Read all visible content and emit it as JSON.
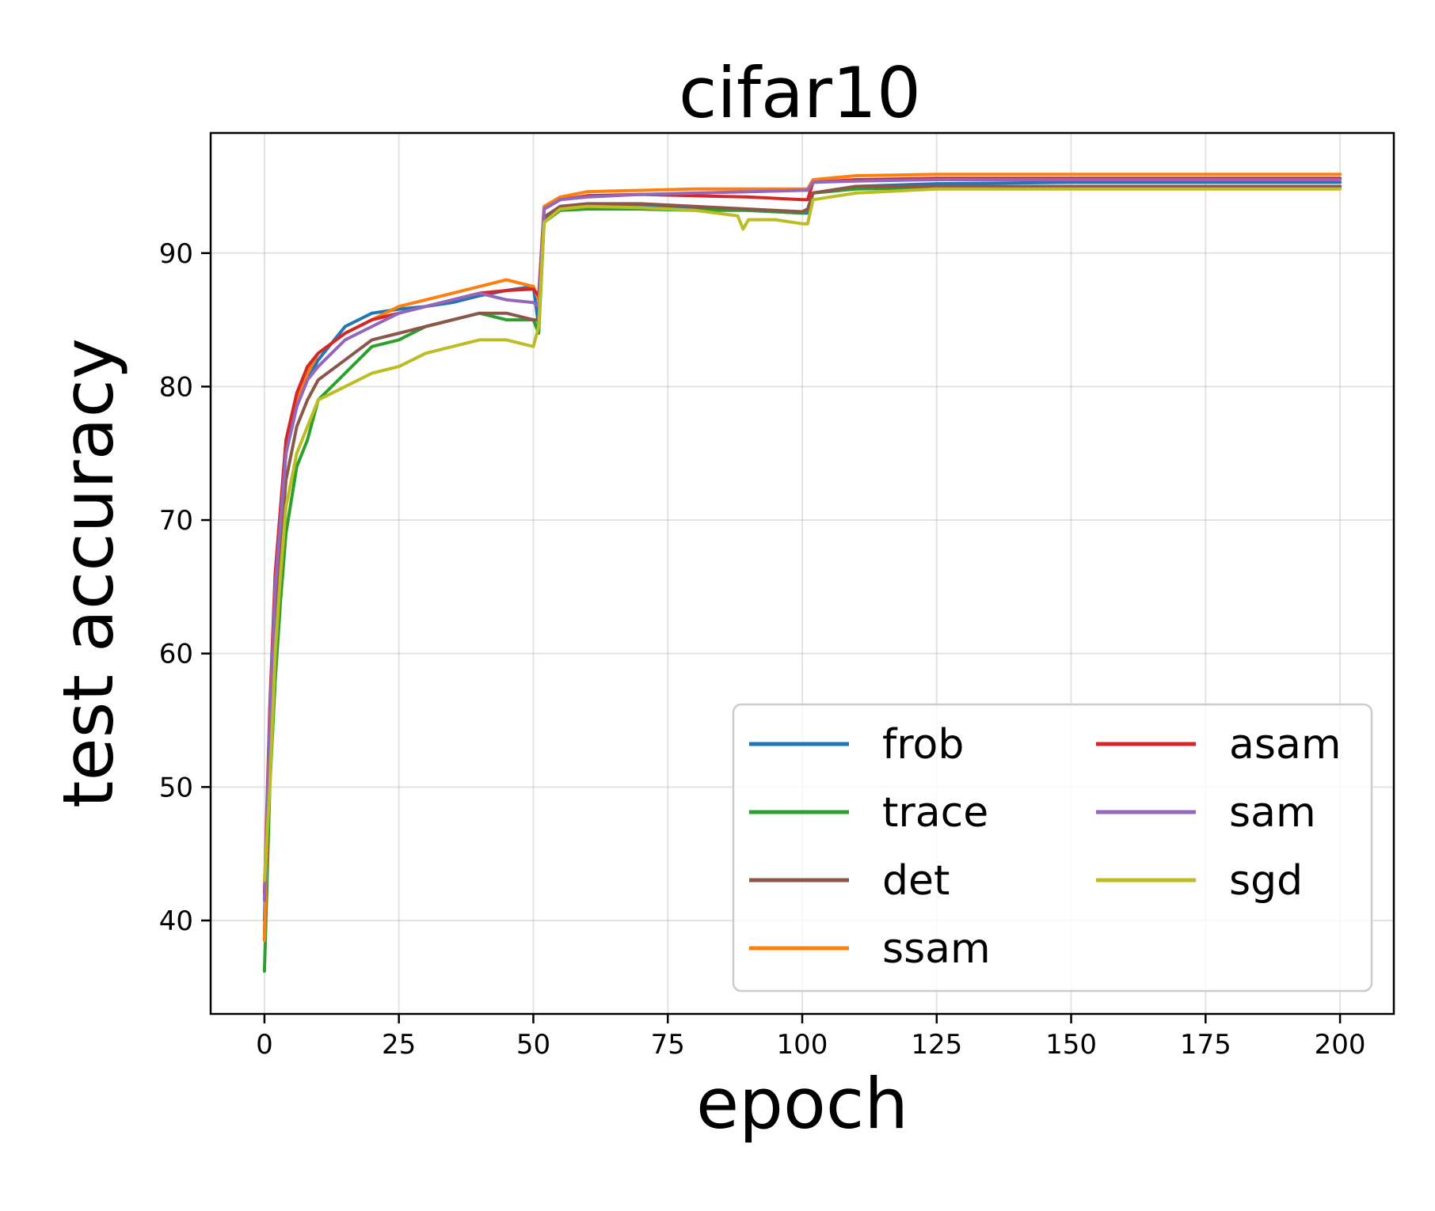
{
  "chart_data": {
    "type": "line",
    "title": "cifar10",
    "xlabel": "epoch",
    "ylabel": "test accuracy",
    "xlim": [
      -10,
      210
    ],
    "ylim": [
      33,
      99
    ],
    "xticks": [
      0,
      25,
      50,
      75,
      100,
      125,
      150,
      175,
      200
    ],
    "yticks": [
      40,
      50,
      60,
      70,
      80,
      90
    ],
    "grid": true,
    "legend": {
      "placement": "bottom-right",
      "columns": 2
    },
    "series": [
      {
        "name": "frob",
        "color": "#1f77b4",
        "x": [
          0,
          1,
          2,
          3,
          4,
          6,
          8,
          10,
          15,
          20,
          25,
          30,
          35,
          40,
          45,
          50,
          51,
          52,
          55,
          60,
          70,
          80,
          90,
          100,
          101,
          102,
          110,
          125,
          150,
          175,
          200
        ],
        "y": [
          40,
          55,
          64,
          70,
          75,
          78.5,
          80.5,
          82,
          84.5,
          85.5,
          85.8,
          86,
          86.3,
          86.8,
          87.2,
          87.5,
          84.5,
          92.5,
          93.5,
          93.6,
          93.6,
          93.4,
          93.2,
          93,
          93,
          94.5,
          95,
          95.2,
          95.3,
          95.3,
          95.3
        ]
      },
      {
        "name": "trace",
        "color": "#2ca02c",
        "x": [
          0,
          1,
          2,
          3,
          4,
          6,
          8,
          10,
          15,
          20,
          25,
          30,
          35,
          40,
          45,
          50,
          51,
          52,
          55,
          60,
          70,
          80,
          90,
          100,
          101,
          102,
          110,
          125,
          150,
          175,
          200
        ],
        "y": [
          36.2,
          50,
          58,
          64,
          69,
          74,
          76,
          79,
          81,
          83,
          83.5,
          84.5,
          85,
          85.5,
          85,
          85,
          84,
          92.3,
          93.2,
          93.3,
          93.3,
          93.2,
          93.2,
          93,
          93.2,
          94.5,
          94.8,
          94.9,
          95,
          95,
          95
        ]
      },
      {
        "name": "det",
        "color": "#8c564b",
        "x": [
          0,
          1,
          2,
          3,
          4,
          6,
          8,
          10,
          15,
          20,
          25,
          30,
          35,
          40,
          45,
          50,
          51,
          52,
          55,
          60,
          70,
          80,
          90,
          100,
          101,
          102,
          110,
          125,
          150,
          175,
          200
        ],
        "y": [
          39,
          53,
          62,
          68,
          73,
          77,
          79,
          80.5,
          82,
          83.5,
          84,
          84.5,
          85,
          85.5,
          85.5,
          85,
          85,
          92.7,
          93.5,
          93.7,
          93.7,
          93.5,
          93.3,
          93.1,
          93.3,
          94.5,
          95,
          95,
          95,
          95,
          95
        ]
      },
      {
        "name": "ssam",
        "color": "#ff7f0e",
        "x": [
          0,
          1,
          2,
          3,
          4,
          6,
          8,
          10,
          15,
          20,
          25,
          30,
          35,
          40,
          45,
          50,
          51,
          52,
          55,
          60,
          70,
          80,
          90,
          100,
          101,
          102,
          110,
          125,
          150,
          175,
          200
        ],
        "y": [
          38.5,
          55,
          65,
          70,
          75,
          79,
          81,
          82.5,
          84,
          85,
          86,
          86.5,
          87,
          87.5,
          88,
          87.5,
          86.5,
          93.5,
          94.2,
          94.6,
          94.7,
          94.8,
          94.8,
          94.8,
          94.8,
          95.5,
          95.8,
          95.9,
          95.9,
          95.9,
          95.9
        ]
      },
      {
        "name": "asam",
        "color": "#d62728",
        "x": [
          0,
          1,
          2,
          3,
          4,
          6,
          8,
          10,
          15,
          20,
          25,
          30,
          35,
          40,
          45,
          50,
          51,
          52,
          55,
          60,
          70,
          80,
          90,
          100,
          101,
          102,
          110,
          125,
          150,
          175,
          200
        ],
        "y": [
          42,
          56,
          66,
          71,
          76,
          79.5,
          81.5,
          82.5,
          84,
          85,
          85.5,
          86,
          86.5,
          87,
          87.2,
          87.3,
          86.8,
          93.3,
          94,
          94.3,
          94.4,
          94.3,
          94.2,
          94,
          94,
          95.3,
          95.5,
          95.6,
          95.6,
          95.6,
          95.6
        ]
      },
      {
        "name": "sam",
        "color": "#9467bd",
        "x": [
          0,
          1,
          2,
          3,
          4,
          6,
          8,
          10,
          15,
          20,
          25,
          30,
          35,
          40,
          45,
          50,
          51,
          52,
          55,
          60,
          70,
          80,
          90,
          100,
          101,
          102,
          110,
          125,
          150,
          175,
          200
        ],
        "y": [
          41.5,
          55,
          65,
          70,
          75,
          78.5,
          80.5,
          81.5,
          83.5,
          84.5,
          85.5,
          86,
          86.5,
          87,
          86.5,
          86.3,
          86,
          93.3,
          94,
          94.2,
          94.4,
          94.5,
          94.6,
          94.7,
          94.7,
          95.3,
          95.4,
          95.5,
          95.5,
          95.5,
          95.5
        ]
      },
      {
        "name": "sgd",
        "color": "#bcbd22",
        "x": [
          0,
          1,
          2,
          3,
          4,
          6,
          8,
          10,
          15,
          20,
          25,
          30,
          35,
          40,
          45,
          50,
          51,
          52,
          55,
          60,
          70,
          80,
          88,
          89,
          90,
          95,
          100,
          101,
          102,
          110,
          125,
          150,
          175,
          200
        ],
        "y": [
          43,
          50,
          60,
          66,
          71,
          75,
          77,
          79,
          80,
          81,
          81.5,
          82.5,
          83,
          83.5,
          83.5,
          83,
          84.5,
          92.3,
          93.3,
          93.5,
          93.4,
          93.2,
          92.8,
          91.8,
          92.5,
          92.5,
          92.2,
          92.2,
          94,
          94.5,
          94.8,
          94.8,
          94.8,
          94.8
        ]
      }
    ]
  }
}
